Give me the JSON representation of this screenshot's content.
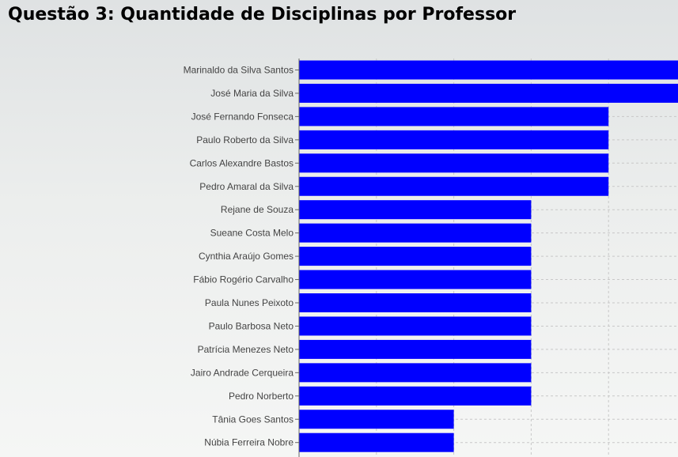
{
  "page": {
    "title": "Questão 3: Quantidade de Disciplinas por Professor"
  },
  "chart_data": {
    "type": "bar",
    "orientation": "horizontal",
    "title": "Questão 3: Quantidade de Disciplinas por Professor",
    "xlabel": "",
    "ylabel": "",
    "categories": [
      "Marinaldo da Silva Santos",
      "José Maria da Silva",
      "José Fernando Fonseca",
      "Paulo Roberto da Silva",
      "Carlos Alexandre Bastos",
      "Pedro Amaral da Silva",
      "Rejane de Souza",
      "Sueane Costa Melo",
      "Cynthia Araújo Gomes",
      "Fábio Rogério Carvalho",
      "Paula Nunes Peixoto",
      "Paulo Barbosa Neto",
      "Patrícia Menezes Neto",
      "Jairo Andrade Cerqueira",
      "Pedro Norberto",
      "Tânia Goes Santos",
      "Núbia Ferreira Nobre"
    ],
    "values": [
      5,
      5,
      4,
      4,
      4,
      4,
      3,
      3,
      3,
      3,
      3,
      3,
      3,
      3,
      3,
      2,
      2
    ],
    "xlim": [
      0,
      5
    ],
    "grid": true,
    "bar_color": "#0000ff"
  }
}
